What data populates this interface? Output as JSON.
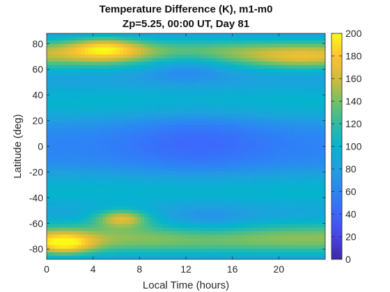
{
  "chart_data": {
    "type": "heatmap",
    "title": "Temperature Difference (K), m1-m0",
    "subtitle": "Zp=5.25, 00:00 UT, Day 81",
    "xlabel": "Local Time (hours)",
    "ylabel": "Latitude (deg)",
    "xlim": [
      0,
      24
    ],
    "ylim": [
      -88,
      88
    ],
    "x_ticks": [
      "0",
      "4",
      "8",
      "12",
      "16",
      "20"
    ],
    "y_ticks": [
      "-80",
      "-60",
      "-40",
      "-20",
      "0",
      "20",
      "40",
      "60",
      "80"
    ],
    "colorbar": {
      "range": [
        0,
        200
      ],
      "ticks": [
        "0",
        "20",
        "40",
        "60",
        "80",
        "100",
        "120",
        "140",
        "160",
        "180",
        "200"
      ],
      "colormap": "parula"
    },
    "field": {
      "base_value": 60,
      "features": [
        {
          "desc": "northern high-latitude band",
          "lt": 8,
          "lat": 72,
          "value": 135
        },
        {
          "desc": "northern maximum",
          "lt": 5,
          "lat": 77,
          "value": 165
        },
        {
          "desc": "northern maximum (dawn side)",
          "lt": 20,
          "lat": 70,
          "value": 140
        },
        {
          "desc": "southern maximum",
          "lt": 6.5,
          "lat": -56,
          "value": 170
        },
        {
          "desc": "southern maximum (pre-dawn)",
          "lt": 1.5,
          "lat": -76,
          "value": 160
        },
        {
          "desc": "southern high-latitude band",
          "lt": 5,
          "lat": -70,
          "value": 140
        },
        {
          "desc": "southern evening band",
          "lt": 20,
          "lat": -68,
          "value": 125
        },
        {
          "desc": "equatorial minimum",
          "lt": 12,
          "lat": 5,
          "value": 48
        }
      ]
    },
    "grid": false
  }
}
